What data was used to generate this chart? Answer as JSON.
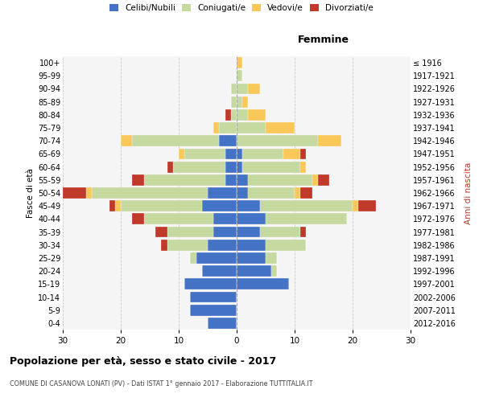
{
  "age_groups": [
    "0-4",
    "5-9",
    "10-14",
    "15-19",
    "20-24",
    "25-29",
    "30-34",
    "35-39",
    "40-44",
    "45-49",
    "50-54",
    "55-59",
    "60-64",
    "65-69",
    "70-74",
    "75-79",
    "80-84",
    "85-89",
    "90-94",
    "95-99",
    "100+"
  ],
  "birth_years": [
    "2012-2016",
    "2007-2011",
    "2002-2006",
    "1997-2001",
    "1992-1996",
    "1987-1991",
    "1982-1986",
    "1977-1981",
    "1972-1976",
    "1967-1971",
    "1962-1966",
    "1957-1961",
    "1952-1956",
    "1947-1951",
    "1942-1946",
    "1937-1941",
    "1932-1936",
    "1927-1931",
    "1922-1926",
    "1917-1921",
    "≤ 1916"
  ],
  "male": {
    "celibi": [
      5,
      8,
      8,
      9,
      6,
      7,
      5,
      4,
      4,
      6,
      5,
      2,
      2,
      2,
      3,
      0,
      0,
      0,
      0,
      0,
      0
    ],
    "coniugati": [
      0,
      0,
      0,
      0,
      0,
      1,
      7,
      8,
      12,
      14,
      20,
      14,
      9,
      7,
      15,
      3,
      1,
      1,
      1,
      0,
      0
    ],
    "vedovi": [
      0,
      0,
      0,
      0,
      0,
      0,
      0,
      0,
      0,
      1,
      1,
      0,
      0,
      1,
      2,
      1,
      0,
      0,
      0,
      0,
      0
    ],
    "divorziati": [
      0,
      0,
      0,
      0,
      0,
      0,
      1,
      2,
      2,
      1,
      4,
      2,
      1,
      0,
      0,
      0,
      1,
      0,
      0,
      0,
      0
    ]
  },
  "female": {
    "nubili": [
      0,
      0,
      0,
      9,
      6,
      5,
      5,
      4,
      5,
      4,
      2,
      2,
      1,
      1,
      0,
      0,
      0,
      0,
      0,
      0,
      0
    ],
    "coniugate": [
      0,
      0,
      0,
      0,
      1,
      2,
      7,
      7,
      14,
      16,
      8,
      11,
      10,
      7,
      14,
      5,
      2,
      1,
      2,
      1,
      0
    ],
    "vedove": [
      0,
      0,
      0,
      0,
      0,
      0,
      0,
      0,
      0,
      1,
      1,
      1,
      1,
      3,
      4,
      5,
      3,
      1,
      2,
      0,
      1
    ],
    "divorziate": [
      0,
      0,
      0,
      0,
      0,
      0,
      0,
      1,
      0,
      3,
      2,
      2,
      0,
      1,
      0,
      0,
      0,
      0,
      0,
      0,
      0
    ]
  },
  "colors": {
    "celibi_nubili": "#4472C4",
    "coniugati": "#C5D9A0",
    "vedovi": "#FAC858",
    "divorziati": "#C0392B"
  },
  "xlim": 30,
  "title": "Popolazione per età, sesso e stato civile - 2017",
  "subtitle": "COMUNE DI CASANOVA LONATI (PV) - Dati ISTAT 1° gennaio 2017 - Elaborazione TUTTITALIA.IT",
  "ylabel_left": "Fasce di età",
  "ylabel_right": "Anni di nascita",
  "xlabel_right": "Femmine",
  "bg_color": "#f5f5f5",
  "grid_color": "#cccccc"
}
